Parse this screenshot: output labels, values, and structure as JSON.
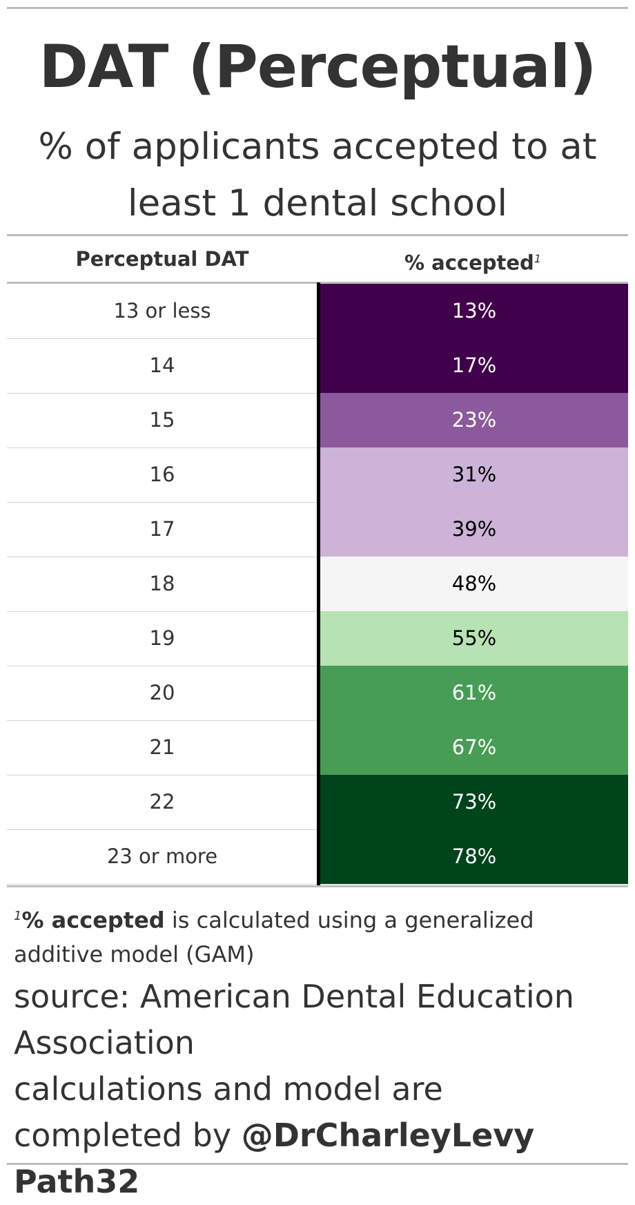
{
  "header": {
    "title": "DAT (Perceptual)",
    "subtitle": "% of applicants accepted to at least 1 dental school"
  },
  "table": {
    "columns": [
      "Perceptual DAT",
      "% accepted"
    ],
    "footnote_marker": "1"
  },
  "chart_data": {
    "type": "table",
    "title": "DAT (Perceptual)",
    "subtitle": "% of applicants accepted to at least 1 dental school",
    "categories": [
      "13 or less",
      "14",
      "15",
      "16",
      "17",
      "18",
      "19",
      "20",
      "21",
      "22",
      "23 or more"
    ],
    "series": [
      {
        "name": "% accepted",
        "values": [
          13,
          17,
          23,
          31,
          39,
          48,
          55,
          61,
          67,
          73,
          78
        ],
        "labels": [
          "13%",
          "17%",
          "23%",
          "31%",
          "39%",
          "48%",
          "55%",
          "61%",
          "67%",
          "73%",
          "78%"
        ],
        "fill_colors": [
          "#40004b",
          "#40004b",
          "#8c5a9c",
          "#ccb3d7",
          "#ccb3d7",
          "#f5f5f5",
          "#b7e2b2",
          "#479d55",
          "#479d55",
          "#00441b",
          "#00441b"
        ],
        "text_colors": [
          "#ffffff",
          "#ffffff",
          "#ffffff",
          "#000000",
          "#000000",
          "#000000",
          "#000000",
          "#ffffff",
          "#ffffff",
          "#ffffff",
          "#ffffff"
        ]
      }
    ]
  },
  "footnote": {
    "marker": "1",
    "bold": "% accepted",
    "text": " is calculated using a generalized additive model (GAM)"
  },
  "source": {
    "line1": "source: American Dental Education Association",
    "line2_prefix": "calculations and model are completed by ",
    "line2_bold": "@DrCharleyLevy Path32"
  },
  "colors": {
    "text": "#333333",
    "rule": "#bdbdbd",
    "divider": "#000000"
  }
}
